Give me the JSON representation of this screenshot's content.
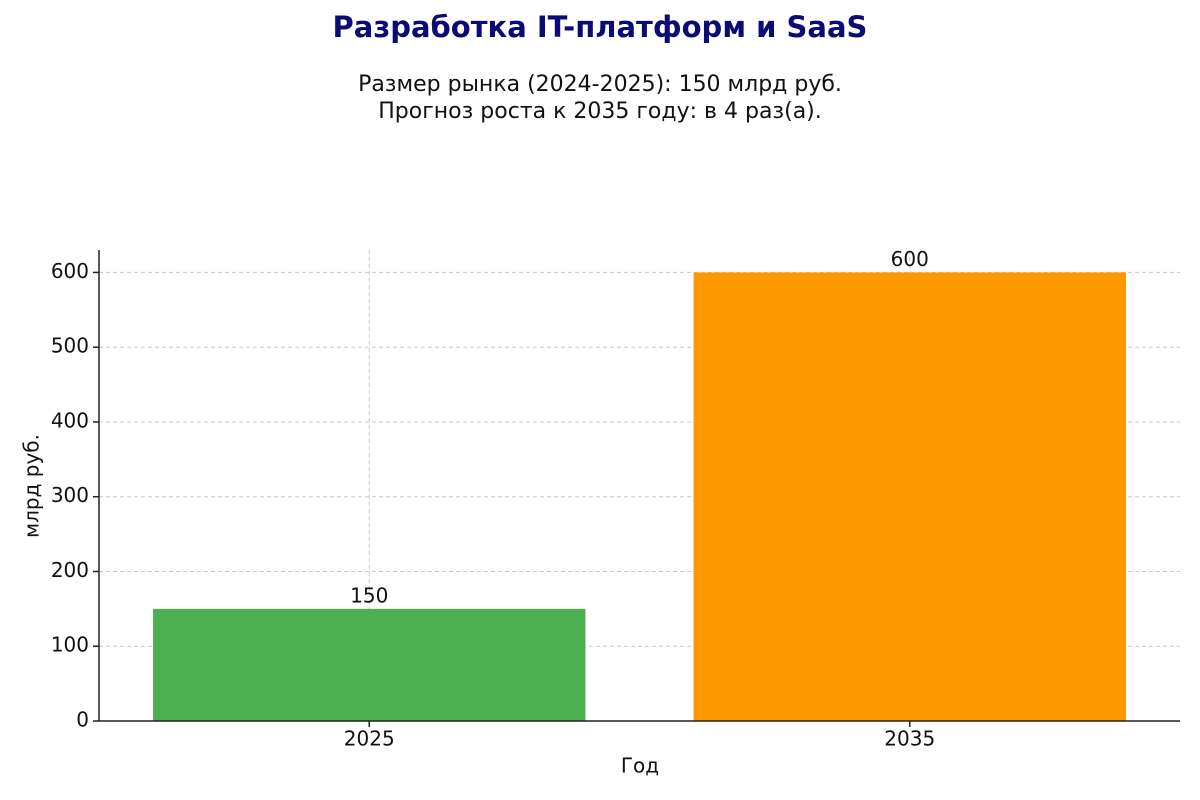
{
  "chart_data": {
    "type": "bar",
    "title": "Разработка IT-платформ и SaaS",
    "subtitle": [
      "Размер рынка (2024-2025): 150 млрд руб.",
      "Прогноз роста к 2035 году: в 4 раз(а)."
    ],
    "x_label": "Год",
    "y_label": "млрд руб.",
    "categories": [
      "2025",
      "2035"
    ],
    "values": [
      150,
      600
    ],
    "colors": [
      "#4caf50",
      "#ff9800"
    ],
    "ylim": [
      0,
      630
    ],
    "yticks": [
      0,
      100,
      200,
      300,
      400,
      500,
      600
    ],
    "grid": true
  }
}
